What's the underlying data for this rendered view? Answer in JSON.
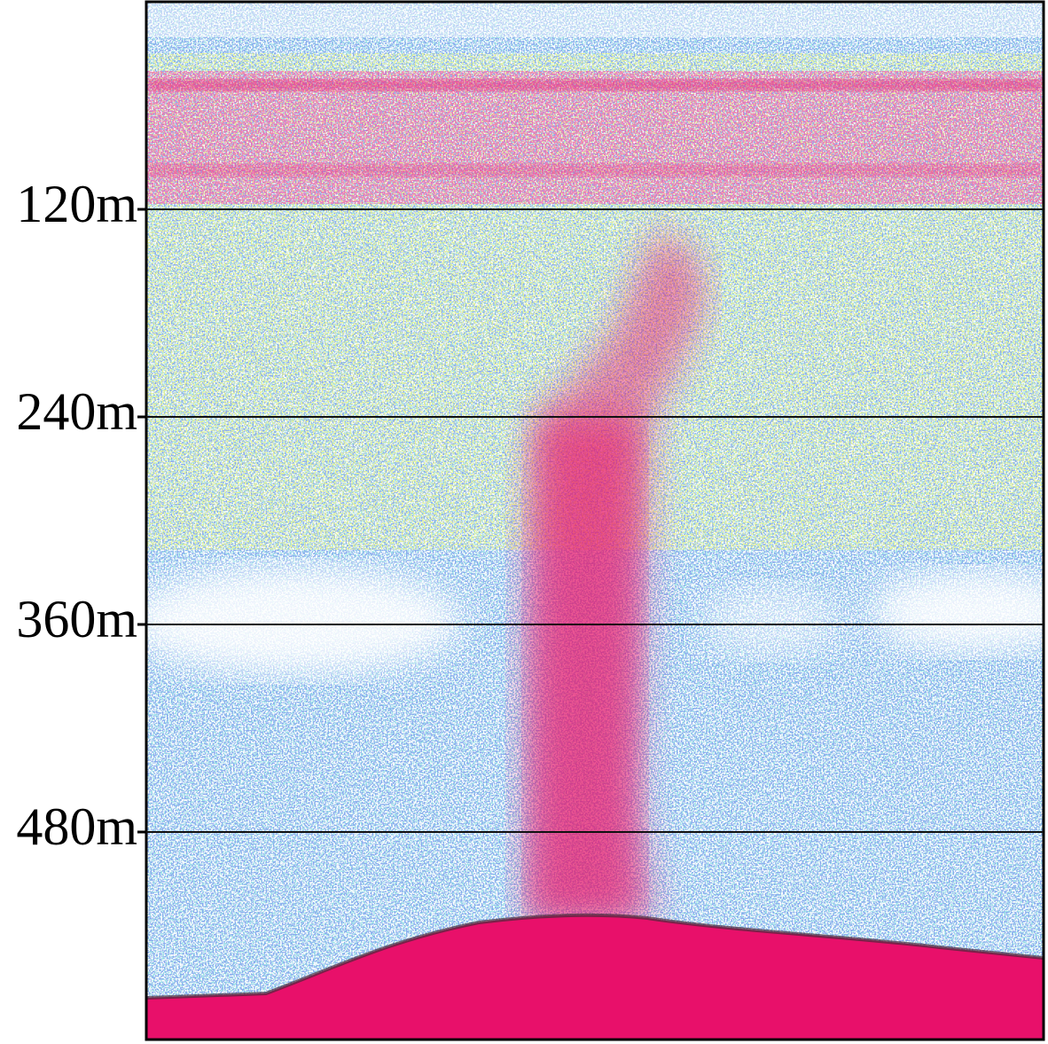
{
  "chart_data": {
    "type": "echogram",
    "ylim": [
      0,
      600
    ],
    "yticks": [
      {
        "value": 120,
        "label": "120m"
      },
      {
        "value": 240,
        "label": "240m"
      },
      {
        "value": 360,
        "label": "360m"
      },
      {
        "value": 480,
        "label": "480m"
      }
    ],
    "grid": true
  }
}
